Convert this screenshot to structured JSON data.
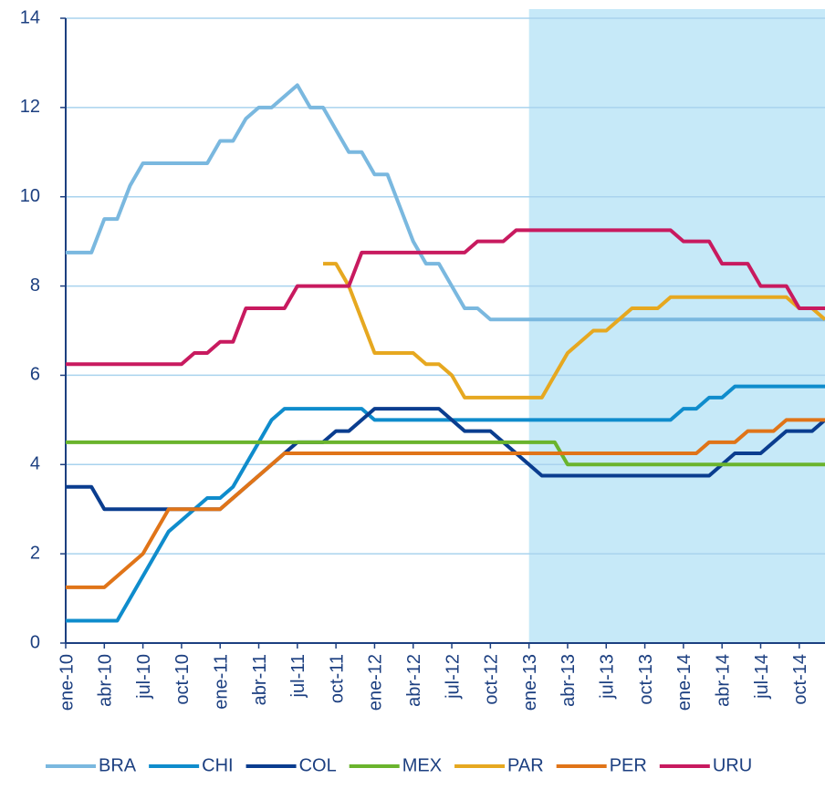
{
  "chart_data": {
    "type": "line",
    "categories": [
      "ene-10",
      null,
      null,
      "abr-10",
      null,
      null,
      "jul-10",
      null,
      null,
      "oct-10",
      null,
      null,
      "ene-11",
      null,
      null,
      "abr-11",
      null,
      null,
      "jul-11",
      null,
      null,
      "oct-11",
      null,
      null,
      "ene-12",
      null,
      null,
      "abr-12",
      null,
      null,
      "jul-12",
      null,
      null,
      "oct-12",
      null,
      null,
      "ene-13",
      null,
      null,
      "abr-13",
      null,
      null,
      "jul-13",
      null,
      null,
      "oct-13",
      null,
      null,
      "ene-14",
      null,
      null,
      "abr-14",
      null,
      null,
      "jul-14",
      null,
      null,
      "oct-14",
      null,
      null
    ],
    "series": [
      {
        "name": "BRA",
        "color": "#7ab8df",
        "values": [
          8.75,
          8.75,
          8.75,
          9.5,
          9.5,
          10.25,
          10.75,
          10.75,
          10.75,
          10.75,
          10.75,
          10.75,
          11.25,
          11.25,
          11.75,
          12,
          12,
          12.25,
          12.5,
          12,
          12,
          11.5,
          11,
          11,
          10.5,
          10.5,
          9.75,
          9,
          8.5,
          8.5,
          8,
          7.5,
          7.5,
          7.25,
          7.25,
          7.25,
          7.25,
          7.25,
          7.25,
          7.25,
          7.25,
          7.25,
          7.25,
          7.25,
          7.25,
          7.25,
          7.25,
          7.25,
          7.25,
          7.25,
          7.25,
          7.25,
          7.25,
          7.25,
          7.25,
          7.25,
          7.25,
          7.25,
          7.25,
          7.25
        ]
      },
      {
        "name": "CHI",
        "color": "#0f8ccc",
        "values": [
          0.5,
          0.5,
          0.5,
          0.5,
          0.5,
          1,
          1.5,
          2,
          2.5,
          2.75,
          3,
          3.25,
          3.25,
          3.5,
          4,
          4.5,
          5,
          5.25,
          5.25,
          5.25,
          5.25,
          5.25,
          5.25,
          5.25,
          5,
          5,
          5,
          5,
          5,
          5,
          5,
          5,
          5,
          5,
          5,
          5,
          5,
          5,
          5,
          5,
          5,
          5,
          5,
          5,
          5,
          5,
          5,
          5,
          5.25,
          5.25,
          5.5,
          5.5,
          5.75,
          5.75,
          5.75,
          5.75,
          5.75,
          5.75,
          5.75,
          5.75
        ]
      },
      {
        "name": "COL",
        "color": "#0a3d8f",
        "values": [
          3.5,
          3.5,
          3.5,
          3,
          3,
          3,
          3,
          3,
          3,
          3,
          3,
          3,
          3,
          3.25,
          3.5,
          3.75,
          4,
          4.25,
          4.5,
          4.5,
          4.5,
          4.75,
          4.75,
          5,
          5.25,
          5.25,
          5.25,
          5.25,
          5.25,
          5.25,
          5,
          4.75,
          4.75,
          4.75,
          4.5,
          4.25,
          4,
          3.75,
          3.75,
          3.75,
          3.75,
          3.75,
          3.75,
          3.75,
          3.75,
          3.75,
          3.75,
          3.75,
          3.75,
          3.75,
          3.75,
          4,
          4.25,
          4.25,
          4.25,
          4.5,
          4.75,
          4.75,
          4.75,
          5
        ]
      },
      {
        "name": "MEX",
        "color": "#6ab42d",
        "values": [
          4.5,
          4.5,
          4.5,
          4.5,
          4.5,
          4.5,
          4.5,
          4.5,
          4.5,
          4.5,
          4.5,
          4.5,
          4.5,
          4.5,
          4.5,
          4.5,
          4.5,
          4.5,
          4.5,
          4.5,
          4.5,
          4.5,
          4.5,
          4.5,
          4.5,
          4.5,
          4.5,
          4.5,
          4.5,
          4.5,
          4.5,
          4.5,
          4.5,
          4.5,
          4.5,
          4.5,
          4.5,
          4.5,
          4.5,
          4,
          4,
          4,
          4,
          4,
          4,
          4,
          4,
          4,
          4,
          4,
          4,
          4,
          4,
          4,
          4,
          4,
          4,
          4,
          4,
          4
        ]
      },
      {
        "name": "PAR",
        "color": "#e6a820",
        "values": [
          null,
          null,
          null,
          null,
          null,
          null,
          null,
          null,
          null,
          null,
          null,
          null,
          null,
          null,
          null,
          null,
          null,
          null,
          null,
          null,
          8.5,
          8.5,
          8,
          7.25,
          6.5,
          6.5,
          6.5,
          6.5,
          6.25,
          6.25,
          6,
          5.5,
          5.5,
          5.5,
          5.5,
          5.5,
          5.5,
          5.5,
          6,
          6.5,
          6.75,
          7,
          7,
          7.25,
          7.5,
          7.5,
          7.5,
          7.75,
          7.75,
          7.75,
          7.75,
          7.75,
          7.75,
          7.75,
          7.75,
          7.75,
          7.75,
          7.5,
          7.5,
          7.25
        ]
      },
      {
        "name": "PER",
        "color": "#e07418",
        "values": [
          1.25,
          1.25,
          1.25,
          1.25,
          1.5,
          1.75,
          2,
          2.5,
          3,
          3,
          3,
          3,
          3,
          3.25,
          3.5,
          3.75,
          4,
          4.25,
          4.25,
          4.25,
          4.25,
          4.25,
          4.25,
          4.25,
          4.25,
          4.25,
          4.25,
          4.25,
          4.25,
          4.25,
          4.25,
          4.25,
          4.25,
          4.25,
          4.25,
          4.25,
          4.25,
          4.25,
          4.25,
          4.25,
          4.25,
          4.25,
          4.25,
          4.25,
          4.25,
          4.25,
          4.25,
          4.25,
          4.25,
          4.25,
          4.5,
          4.5,
          4.5,
          4.75,
          4.75,
          4.75,
          5,
          5,
          5,
          5
        ]
      },
      {
        "name": "URU",
        "color": "#c81a5f",
        "values": [
          6.25,
          6.25,
          6.25,
          6.25,
          6.25,
          6.25,
          6.25,
          6.25,
          6.25,
          6.25,
          6.5,
          6.5,
          6.75,
          6.75,
          7.5,
          7.5,
          7.5,
          7.5,
          8,
          8,
          8,
          8,
          8,
          8.75,
          8.75,
          8.75,
          8.75,
          8.75,
          8.75,
          8.75,
          8.75,
          8.75,
          9,
          9,
          9,
          9.25,
          9.25,
          9.25,
          9.25,
          9.25,
          9.25,
          9.25,
          9.25,
          9.25,
          9.25,
          9.25,
          9.25,
          9.25,
          9,
          9,
          9,
          8.5,
          8.5,
          8.5,
          8,
          8,
          8,
          7.5,
          7.5,
          7.5
        ]
      }
    ],
    "ylim": [
      0,
      14
    ],
    "yticks": [
      0,
      2,
      4,
      6,
      8,
      10,
      12,
      14
    ],
    "grid": true,
    "shade_from": "ene-13",
    "shade_color": "#c6e9f8",
    "legend": "bottom"
  }
}
